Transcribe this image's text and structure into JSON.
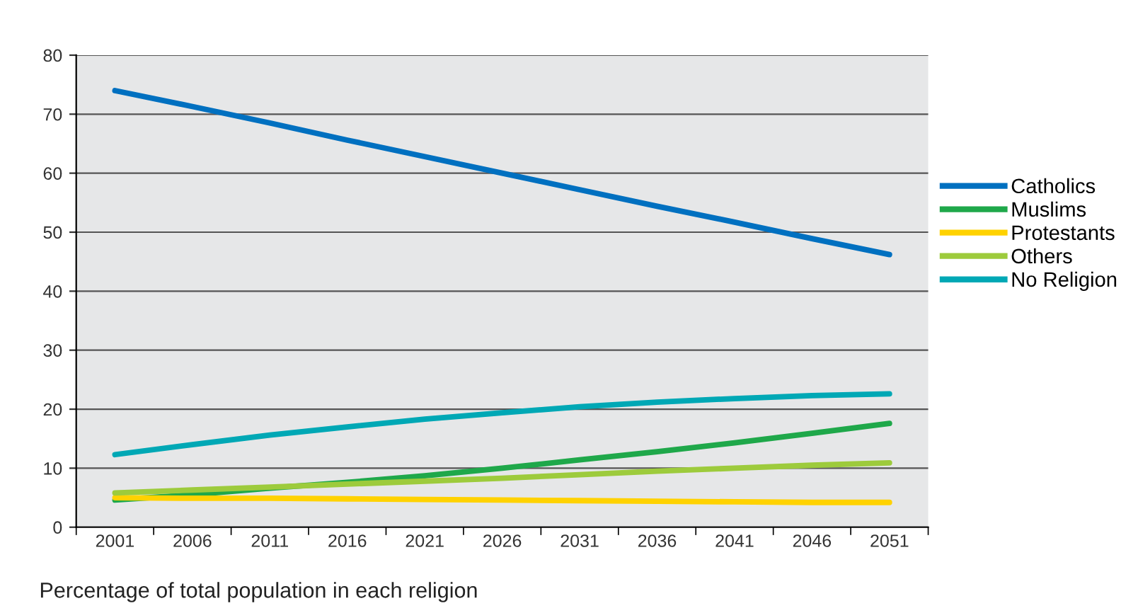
{
  "chart_data": {
    "type": "line",
    "categories": [
      "2001",
      "2006",
      "2011",
      "2016",
      "2021",
      "2026",
      "2031",
      "2036",
      "2041",
      "2046",
      "2051"
    ],
    "series": [
      {
        "name": "Catholics",
        "color": "#0070c0",
        "values": [
          74,
          71.3,
          68.5,
          65.6,
          62.8,
          60,
          57.2,
          54.4,
          51.7,
          48.9,
          46.2
        ]
      },
      {
        "name": "Muslims",
        "color": "#1fa84a",
        "values": [
          4.6,
          5.5,
          6.6,
          7.6,
          8.7,
          10,
          11.4,
          12.8,
          14.3,
          15.9,
          17.6
        ]
      },
      {
        "name": "Protestants",
        "color": "#ffd200",
        "values": [
          5,
          4.9,
          4.9,
          4.8,
          4.7,
          4.6,
          4.5,
          4.4,
          4.3,
          4.2,
          4.2
        ]
      },
      {
        "name": "Others",
        "color": "#9dcb3c",
        "values": [
          5.8,
          6.3,
          6.8,
          7.3,
          7.8,
          8.3,
          8.9,
          9.5,
          10,
          10.5,
          10.9
        ]
      },
      {
        "name": "No Religion",
        "color": "#00a8b5",
        "values": [
          12.3,
          14,
          15.6,
          17,
          18.3,
          19.4,
          20.4,
          21.2,
          21.8,
          22.3,
          22.6
        ]
      }
    ],
    "ylim": [
      0,
      80
    ],
    "yticks": [
      0,
      10,
      20,
      30,
      40,
      50,
      60,
      70,
      80
    ],
    "grid": "y",
    "legend": "right",
    "marker": "none",
    "line_style": "solid",
    "annotations": [
      "Percentage of total population in each religion"
    ]
  }
}
